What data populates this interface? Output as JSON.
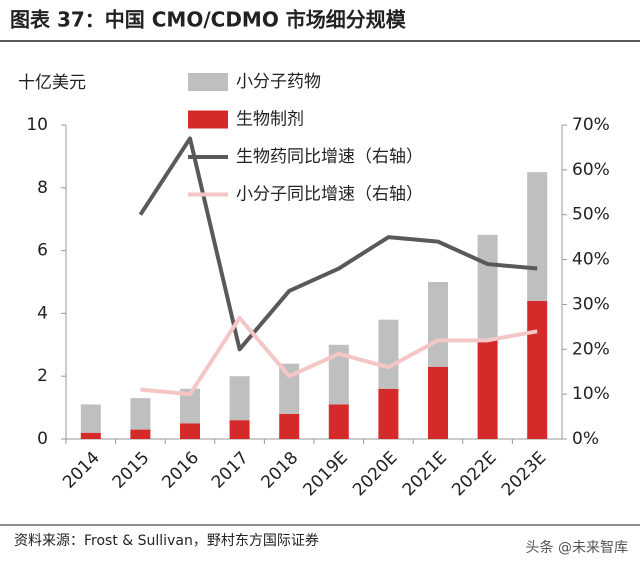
{
  "chart_data": {
    "type": "bar-line",
    "title": "图表 37：中国 CMO/CDMO 市场细分规模",
    "y_unit_label": "十亿美元",
    "source": "资料来源：Frost & Sullivan，野村东方国际证券",
    "watermark": "头条 @未来智库",
    "categories": [
      "2014",
      "2015",
      "2016",
      "2017",
      "2018",
      "2019E",
      "2020E",
      "2021E",
      "2022E",
      "2023E"
    ],
    "series": [
      {
        "name": "小分子药物",
        "type": "bar",
        "color": "#bfbfbf",
        "values": [
          0.9,
          1.0,
          1.1,
          1.4,
          1.6,
          1.9,
          2.2,
          2.7,
          3.3,
          4.1
        ]
      },
      {
        "name": "生物制剂",
        "type": "bar",
        "color": "#d42a2a",
        "values": [
          0.2,
          0.3,
          0.5,
          0.6,
          0.8,
          1.1,
          1.6,
          2.3,
          3.2,
          4.4
        ]
      },
      {
        "name": "生物药同比增速（右轴）",
        "type": "line",
        "axis": "y2",
        "color": "#595959",
        "values": [
          null,
          50,
          67,
          20,
          33,
          38,
          45,
          44,
          39,
          38
        ]
      },
      {
        "name": "小分子同比增速（右轴）",
        "type": "line",
        "axis": "y2",
        "color": "#f5c6c6",
        "values": [
          null,
          11,
          10,
          27,
          14,
          19,
          16,
          22,
          22,
          24
        ]
      }
    ],
    "stacked": true,
    "ylim": [
      0,
      10
    ],
    "yticks": [
      0,
      2,
      4,
      6,
      8,
      10
    ],
    "y2lim": [
      0,
      70
    ],
    "y2ticks": [
      {
        "value": 0,
        "label": "0%"
      },
      {
        "value": 10,
        "label": "10%"
      },
      {
        "value": 20,
        "label": "20%"
      },
      {
        "value": 30,
        "label": "30%"
      },
      {
        "value": 40,
        "label": "40%"
      },
      {
        "value": 50,
        "label": "50%"
      },
      {
        "value": 60,
        "label": "60%"
      },
      {
        "value": 70,
        "label": "70%"
      }
    ],
    "grid": false,
    "legend": "top"
  }
}
